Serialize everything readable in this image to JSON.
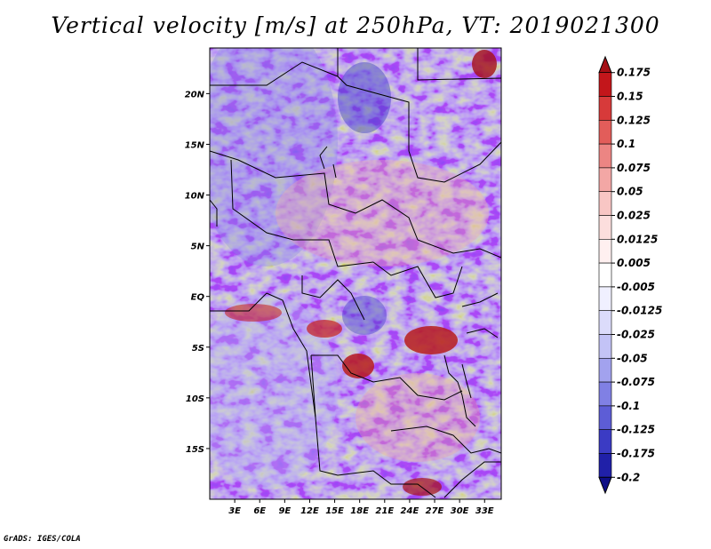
{
  "title": "Vertical velocity [m/s] at 250hPa, VT: 2019021300",
  "credit": "GrADS: IGES/COLA",
  "map": {
    "lat_labels": [
      "20N",
      "15N",
      "10N",
      "5N",
      "EQ",
      "5S",
      "10S",
      "15S"
    ],
    "lat_values": [
      20,
      15,
      10,
      5,
      0,
      -5,
      -10,
      -15
    ],
    "lon_labels": [
      "3E",
      "6E",
      "9E",
      "12E",
      "15E",
      "18E",
      "21E",
      "24E",
      "27E",
      "30E",
      "33E"
    ],
    "lon_values": [
      3,
      6,
      9,
      12,
      15,
      18,
      21,
      24,
      27,
      30,
      33
    ],
    "lon_range": [
      0,
      35
    ],
    "lat_range": [
      -20,
      24.5
    ]
  },
  "colorbar": {
    "labels": [
      "0.175",
      "0.15",
      "0.125",
      "0.1",
      "0.075",
      "0.05",
      "0.025",
      "0.0125",
      "0.005",
      "-0.005",
      "-0.0125",
      "-0.025",
      "-0.05",
      "-0.075",
      "-0.1",
      "-0.125",
      "-0.175",
      "-0.2"
    ],
    "colors": [
      "#a50f15",
      "#c3161b",
      "#d73a3a",
      "#e25d5a",
      "#ec8583",
      "#f3a7a5",
      "#f8c6c4",
      "#fcdedd",
      "#fff0f0",
      "#ffffff",
      "#f0f0ff",
      "#dcdcfb",
      "#c3c3f6",
      "#a2a2ee",
      "#8080e4",
      "#5d5dd6",
      "#3b3bc4",
      "#2020a8",
      "#0e0e86"
    ]
  }
}
